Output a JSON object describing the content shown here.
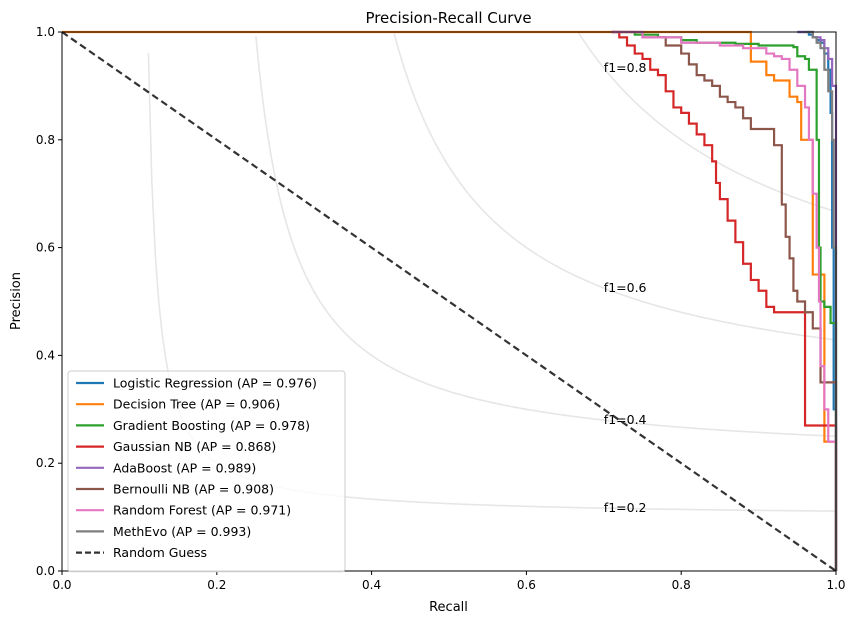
{
  "chart_data": {
    "type": "line",
    "title": "Precision-Recall Curve",
    "xlabel": "Recall",
    "ylabel": "Precision",
    "xlim": [
      0,
      1
    ],
    "ylim": [
      0,
      1
    ],
    "xticks": [
      "0.0",
      "0.2",
      "0.4",
      "0.6",
      "0.8",
      "1.0"
    ],
    "yticks": [
      "0.0",
      "0.2",
      "0.4",
      "0.6",
      "0.8",
      "1.0"
    ],
    "grid": false,
    "legend_position": "lower-left",
    "iso_f1": [
      {
        "f1": 0.2,
        "label": "f1=0.2",
        "label_x": 0.7
      },
      {
        "f1": 0.4,
        "label": "f1=0.4",
        "label_x": 0.7
      },
      {
        "f1": 0.6,
        "label": "f1=0.6",
        "label_x": 0.7
      },
      {
        "f1": 0.8,
        "label": "f1=0.8",
        "label_x": 0.7
      }
    ],
    "series": [
      {
        "name": "Logistic Regression (AP = 0.976)",
        "color": "#1f77b4",
        "dashed": false,
        "points": [
          [
            0.95,
            1.0
          ],
          [
            0.96,
            1.0
          ],
          [
            0.965,
            0.995
          ],
          [
            0.97,
            0.99
          ],
          [
            0.975,
            0.985
          ],
          [
            0.98,
            0.98
          ],
          [
            0.985,
            0.96
          ],
          [
            0.99,
            0.93
          ],
          [
            0.993,
            0.85
          ],
          [
            0.995,
            0.6
          ],
          [
            0.997,
            0.3
          ],
          [
            1.0,
            0.1
          ],
          [
            1.0,
            0.0
          ]
        ]
      },
      {
        "name": "Decision Tree (AP = 0.906)",
        "color": "#ff7f0e",
        "dashed": false,
        "points": [
          [
            0.0,
            1.0
          ],
          [
            0.5,
            1.0
          ],
          [
            0.89,
            0.945
          ],
          [
            0.91,
            0.92
          ],
          [
            0.92,
            0.91
          ],
          [
            0.94,
            0.88
          ],
          [
            0.95,
            0.87
          ],
          [
            0.955,
            0.8
          ],
          [
            0.97,
            0.55
          ],
          [
            0.985,
            0.24
          ],
          [
            1.0,
            0.05
          ],
          [
            1.0,
            0.0
          ]
        ]
      },
      {
        "name": "Gradient Boosting (AP = 0.978)",
        "color": "#2ca02c",
        "dashed": false,
        "points": [
          [
            0.71,
            1.0
          ],
          [
            0.74,
            0.995
          ],
          [
            0.77,
            0.99
          ],
          [
            0.8,
            0.985
          ],
          [
            0.82,
            0.98
          ],
          [
            0.84,
            0.98
          ],
          [
            0.87,
            0.978
          ],
          [
            0.9,
            0.975
          ],
          [
            0.93,
            0.975
          ],
          [
            0.945,
            0.972
          ],
          [
            0.95,
            0.955
          ],
          [
            0.96,
            0.95
          ],
          [
            0.965,
            0.93
          ],
          [
            0.968,
            0.93
          ],
          [
            0.97,
            0.93
          ],
          [
            0.975,
            0.8
          ],
          [
            0.978,
            0.6
          ],
          [
            0.98,
            0.5
          ],
          [
            0.985,
            0.49
          ],
          [
            0.99,
            0.49
          ],
          [
            0.993,
            0.46
          ],
          [
            1.0,
            0.46
          ],
          [
            1.0,
            0.0
          ]
        ]
      },
      {
        "name": "Gaussian NB (AP = 0.868)",
        "color": "#d62728",
        "dashed": false,
        "points": [
          [
            0.71,
            1.0
          ],
          [
            0.72,
            0.99
          ],
          [
            0.73,
            0.975
          ],
          [
            0.74,
            0.96
          ],
          [
            0.75,
            0.95
          ],
          [
            0.76,
            0.93
          ],
          [
            0.77,
            0.92
          ],
          [
            0.78,
            0.89
          ],
          [
            0.79,
            0.86
          ],
          [
            0.8,
            0.85
          ],
          [
            0.81,
            0.83
          ],
          [
            0.82,
            0.81
          ],
          [
            0.83,
            0.79
          ],
          [
            0.84,
            0.76
          ],
          [
            0.845,
            0.72
          ],
          [
            0.85,
            0.69
          ],
          [
            0.86,
            0.65
          ],
          [
            0.87,
            0.61
          ],
          [
            0.88,
            0.57
          ],
          [
            0.89,
            0.54
          ],
          [
            0.9,
            0.52
          ],
          [
            0.91,
            0.49
          ],
          [
            0.92,
            0.48
          ],
          [
            0.96,
            0.27
          ],
          [
            1.0,
            0.05
          ],
          [
            1.0,
            0.0
          ]
        ]
      },
      {
        "name": "AdaBoost (AP = 0.989)",
        "color": "#9467bd",
        "dashed": false,
        "points": [
          [
            0.95,
            1.0
          ],
          [
            0.96,
            1.0
          ],
          [
            0.97,
            0.99
          ],
          [
            0.98,
            0.985
          ],
          [
            0.985,
            0.97
          ],
          [
            0.99,
            0.95
          ],
          [
            0.995,
            0.9
          ],
          [
            1.0,
            0.8
          ],
          [
            1.0,
            0.0
          ]
        ]
      },
      {
        "name": "Bernoulli NB (AP = 0.908)",
        "color": "#8c564b",
        "dashed": false,
        "points": [
          [
            0.71,
            1.0
          ],
          [
            0.75,
            0.99
          ],
          [
            0.78,
            0.975
          ],
          [
            0.8,
            0.96
          ],
          [
            0.81,
            0.94
          ],
          [
            0.82,
            0.92
          ],
          [
            0.83,
            0.91
          ],
          [
            0.84,
            0.9
          ],
          [
            0.85,
            0.88
          ],
          [
            0.86,
            0.87
          ],
          [
            0.87,
            0.86
          ],
          [
            0.88,
            0.84
          ],
          [
            0.89,
            0.82
          ],
          [
            0.9,
            0.82
          ],
          [
            0.91,
            0.82
          ],
          [
            0.92,
            0.79
          ],
          [
            0.93,
            0.68
          ],
          [
            0.935,
            0.62
          ],
          [
            0.94,
            0.58
          ],
          [
            0.945,
            0.52
          ],
          [
            0.95,
            0.5
          ],
          [
            0.96,
            0.48
          ],
          [
            0.97,
            0.45
          ],
          [
            0.98,
            0.35
          ],
          [
            1.0,
            0.05
          ],
          [
            1.0,
            0.0
          ]
        ]
      },
      {
        "name": "Random Forest (AP = 0.971)",
        "color": "#e377c2",
        "dashed": false,
        "points": [
          [
            0.71,
            1.0
          ],
          [
            0.75,
            0.99
          ],
          [
            0.8,
            0.98
          ],
          [
            0.85,
            0.975
          ],
          [
            0.88,
            0.97
          ],
          [
            0.9,
            0.97
          ],
          [
            0.91,
            0.96
          ],
          [
            0.92,
            0.955
          ],
          [
            0.93,
            0.95
          ],
          [
            0.94,
            0.93
          ],
          [
            0.95,
            0.9
          ],
          [
            0.96,
            0.86
          ],
          [
            0.965,
            0.8
          ],
          [
            0.97,
            0.7
          ],
          [
            0.975,
            0.6
          ],
          [
            0.978,
            0.5
          ],
          [
            0.98,
            0.38
          ],
          [
            0.985,
            0.3
          ],
          [
            0.99,
            0.24
          ],
          [
            1.0,
            0.24
          ],
          [
            1.0,
            0.0
          ]
        ]
      },
      {
        "name": "MethEvo (AP = 0.993)",
        "color": "#7f7f7f",
        "dashed": false,
        "points": [
          [
            0.96,
            1.0
          ],
          [
            0.97,
            0.99
          ],
          [
            0.975,
            0.98
          ],
          [
            0.98,
            0.97
          ],
          [
            0.985,
            0.93
          ],
          [
            0.99,
            0.89
          ],
          [
            0.993,
            0.89
          ],
          [
            0.995,
            0.8
          ],
          [
            0.997,
            0.6
          ],
          [
            1.0,
            0.41
          ],
          [
            1.0,
            0.0
          ]
        ]
      },
      {
        "name": "Random Guess",
        "color": "#333333",
        "dashed": true,
        "points": [
          [
            0.0,
            1.0
          ],
          [
            1.0,
            0.0
          ]
        ]
      }
    ]
  }
}
